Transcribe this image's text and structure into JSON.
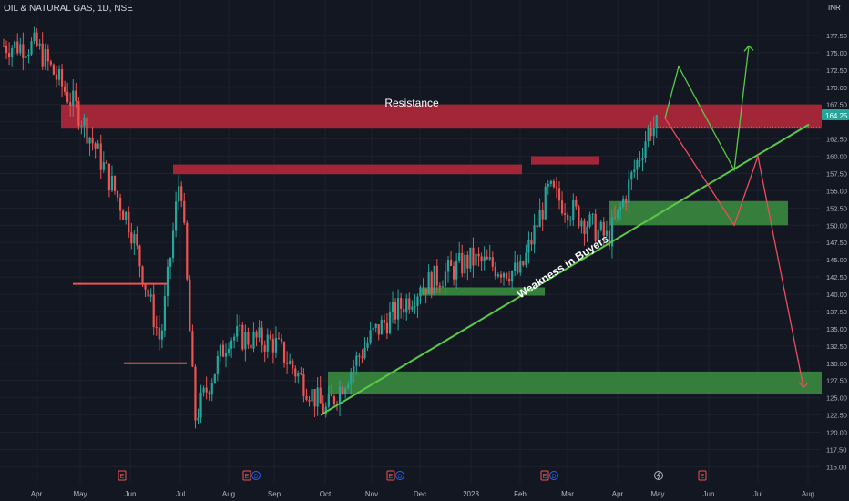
{
  "symbol_label": "OIL & NATURAL GAS, 1D, NSE",
  "currency": "INR",
  "last_price": "164.25",
  "colors": {
    "background": "#131722",
    "grid": "#1e222d",
    "up": "#26a69a",
    "down": "#ef5350",
    "zone_red": "#b2283a",
    "zone_green": "#3a8a3f",
    "trendline": "#5cc848",
    "axis_text": "#b2b5be",
    "price_badge": "#26a69a",
    "arrow_red": "#ef4b5a",
    "arrow_green": "#5cc848"
  },
  "annotations": {
    "resistance_label": "Resistance",
    "trendline_label": "Weakness in Buyers"
  },
  "events": [
    {
      "month": "Jun",
      "icons": [
        "E"
      ]
    },
    {
      "month": "Aug",
      "icons": [
        "E",
        "D"
      ]
    },
    {
      "month": "Nov",
      "icons": [
        "E",
        "D"
      ]
    },
    {
      "month": "Mar",
      "icons": [
        "E",
        "D"
      ]
    },
    {
      "month": "May",
      "icons": [
        "lightning-icon",
        "E"
      ]
    }
  ],
  "chart_data": {
    "type": "candlestick",
    "title": "OIL & NATURAL GAS, 1D, NSE",
    "xlabel": "",
    "ylabel": "INR",
    "ylim": [
      114,
      180
    ],
    "x_ticks": [
      "Apr",
      "May",
      "Jun",
      "Jul",
      "Aug",
      "Sep",
      "Oct",
      "Nov",
      "Dec",
      "2023",
      "Feb",
      "Mar",
      "Apr",
      "May",
      "Jun",
      "Jul",
      "Aug"
    ],
    "y_ticks": [
      "115.00",
      "117.50",
      "120.00",
      "122.50",
      "125.00",
      "127.50",
      "130.00",
      "132.50",
      "135.00",
      "137.50",
      "140.00",
      "142.50",
      "145.00",
      "147.50",
      "150.00",
      "152.50",
      "155.00",
      "157.50",
      "160.00",
      "162.50",
      "165.00",
      "167.50",
      "170.00",
      "172.50",
      "175.00",
      "177.50"
    ],
    "last_price": 164.25,
    "key_points": [
      {
        "date": "Apr",
        "close": 176
      },
      {
        "date": "May",
        "close": 166
      },
      {
        "date": "Jun",
        "close": 150
      },
      {
        "date": "late Jun",
        "close": 133
      },
      {
        "date": "early Jul",
        "close": 158
      },
      {
        "date": "mid Jul",
        "close": 122
      },
      {
        "date": "Aug",
        "close": 134
      },
      {
        "date": "Sep",
        "close": 133
      },
      {
        "date": "Oct",
        "close": 123
      },
      {
        "date": "Nov",
        "close": 134
      },
      {
        "date": "Dec",
        "close": 141
      },
      {
        "date": "2023",
        "close": 145
      },
      {
        "date": "Feb",
        "close": 143
      },
      {
        "date": "Feb-Mar",
        "close": 155
      },
      {
        "date": "Apr",
        "close": 148
      },
      {
        "date": "May",
        "close": 164.25
      }
    ],
    "zones": [
      {
        "label": "Resistance",
        "kind": "resistance",
        "from": "May 2022",
        "to": "Aug 2023",
        "y": [
          164,
          167.5
        ]
      },
      {
        "kind": "resistance",
        "from": "Jul 2022",
        "to": "Feb 2023",
        "y": [
          157.4,
          158.8
        ]
      },
      {
        "kind": "resistance",
        "from": "Feb 2023",
        "to": "Mar 2023",
        "y": [
          158.8,
          160
        ]
      },
      {
        "kind": "support",
        "from": "Dec 2022",
        "to": "Feb 2023",
        "y": [
          139.8,
          141
        ]
      },
      {
        "kind": "support",
        "from": "Apr 2023",
        "to": "Jul 2023",
        "y": [
          150,
          153.5
        ]
      },
      {
        "kind": "support",
        "from": "Oct 2022",
        "to": "Aug 2023",
        "y": [
          125.5,
          128.8
        ]
      }
    ],
    "horizontal_lines": [
      {
        "from": "May 2022",
        "to": "Jun 2022",
        "y": 141.5
      },
      {
        "from": "Jun 2022",
        "to": "Jul 2022",
        "y": 130
      }
    ],
    "trendline": {
      "label": "Weakness in Buyers",
      "from": {
        "date": "Oct 2022",
        "y": 122.5
      },
      "to": {
        "date": "Aug 2023",
        "y": 164.6
      }
    },
    "projections": [
      {
        "scenario": "bullish",
        "path": [
          {
            "date": "May",
            "y": 165.5
          },
          {
            "date": "May",
            "y": 173
          },
          {
            "date": "Jun",
            "y": 158
          },
          {
            "date": "Jul",
            "y": 176
          }
        ]
      },
      {
        "scenario": "bearish",
        "path": [
          {
            "date": "May",
            "y": 165.5
          },
          {
            "date": "Jun",
            "y": 150
          },
          {
            "date": "Jul",
            "y": 160
          },
          {
            "date": "Aug",
            "y": 126.5
          }
        ]
      }
    ]
  }
}
